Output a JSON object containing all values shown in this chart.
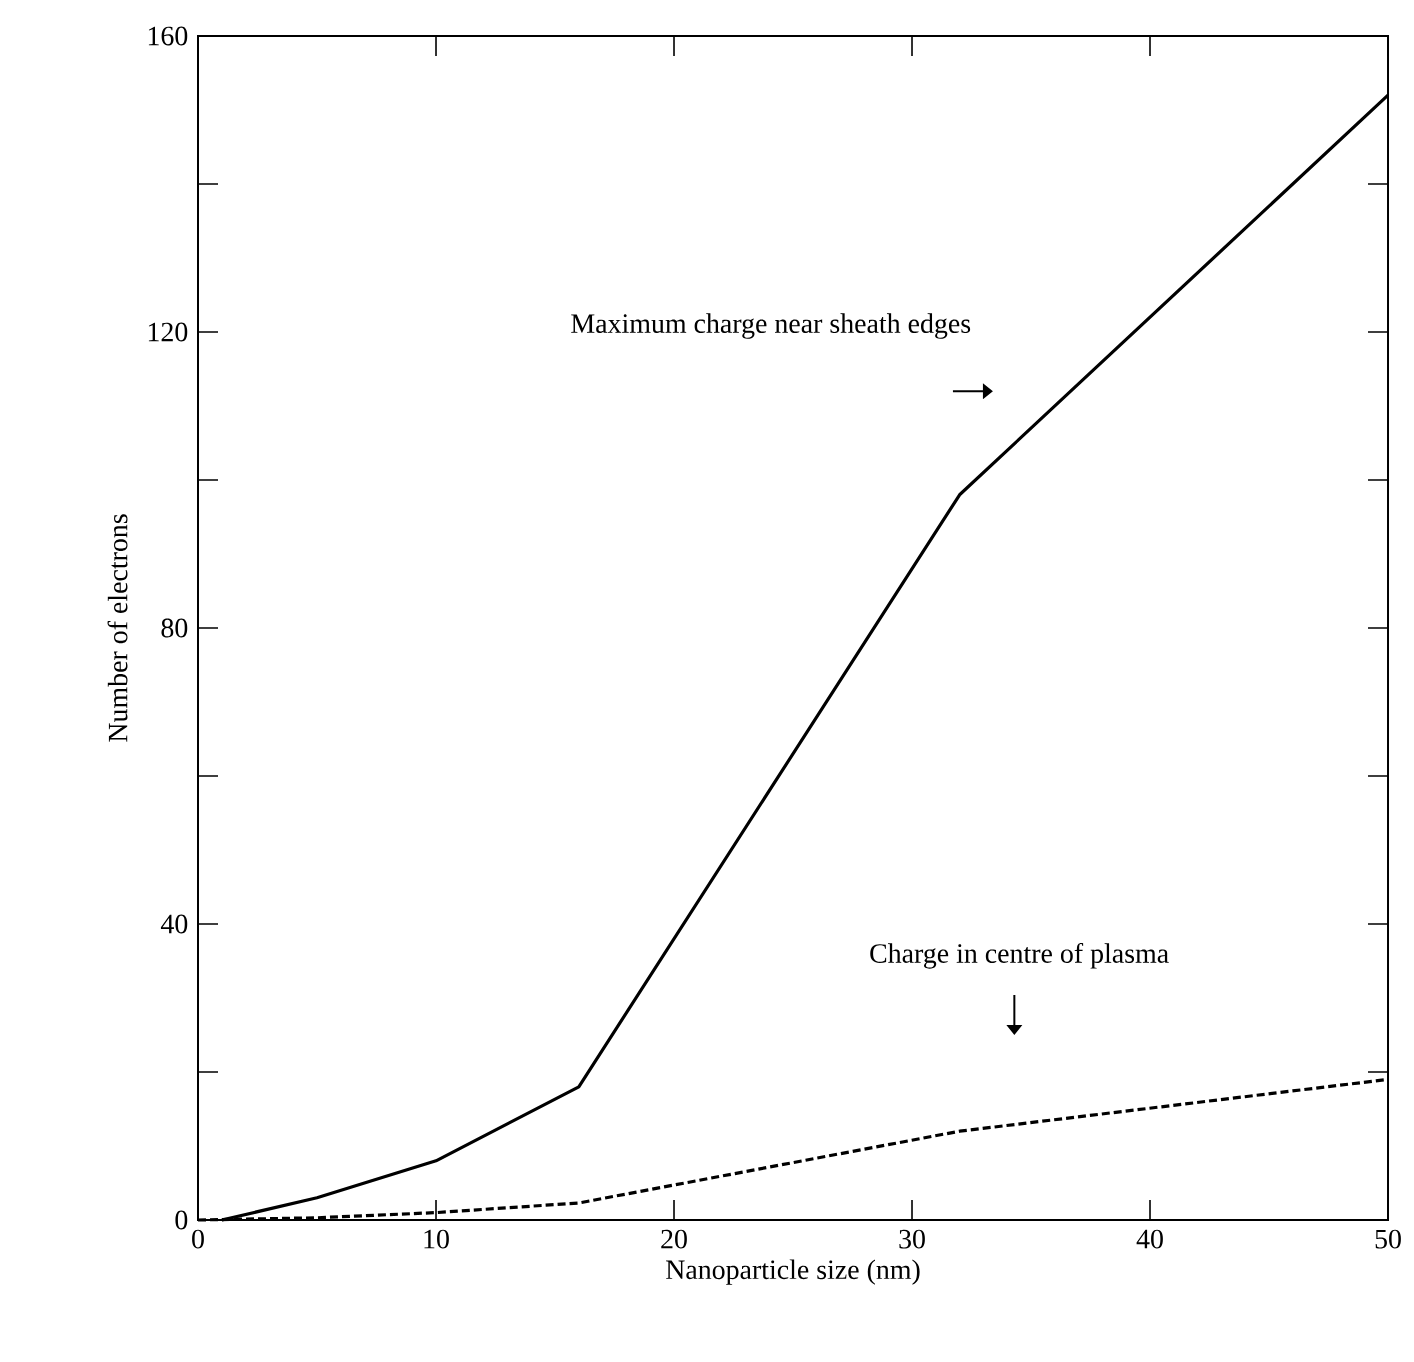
{
  "chart_data": {
    "type": "line",
    "xlabel": "Nanoparticle size (nm)",
    "ylabel": "Number of electrons",
    "xlim": [
      0,
      50
    ],
    "ylim": [
      0,
      160
    ],
    "xticks": [
      0,
      10,
      20,
      30,
      40,
      50
    ],
    "yticks": [
      0,
      {
        "value": 20,
        "label": null
      },
      40,
      {
        "value": 60,
        "label": null
      },
      80,
      {
        "value": 100,
        "label": null
      },
      120,
      {
        "value": 140,
        "label": null
      },
      160
    ],
    "series": [
      {
        "x": [
          1,
          5,
          10,
          16,
          32,
          50
        ],
        "values": [
          0,
          3,
          8,
          18,
          98,
          152
        ],
        "color": "#000000",
        "line_style": "solid"
      },
      {
        "x": [
          0,
          5,
          10,
          16,
          32,
          50
        ],
        "values": [
          0,
          0.3,
          1,
          2.3,
          12,
          19
        ],
        "color": "#000000",
        "line_style": "dashed"
      }
    ],
    "annotations": [
      "Maximum charge near sheath edges",
      "Charge in centre of plasma"
    ],
    "marker": "none"
  }
}
